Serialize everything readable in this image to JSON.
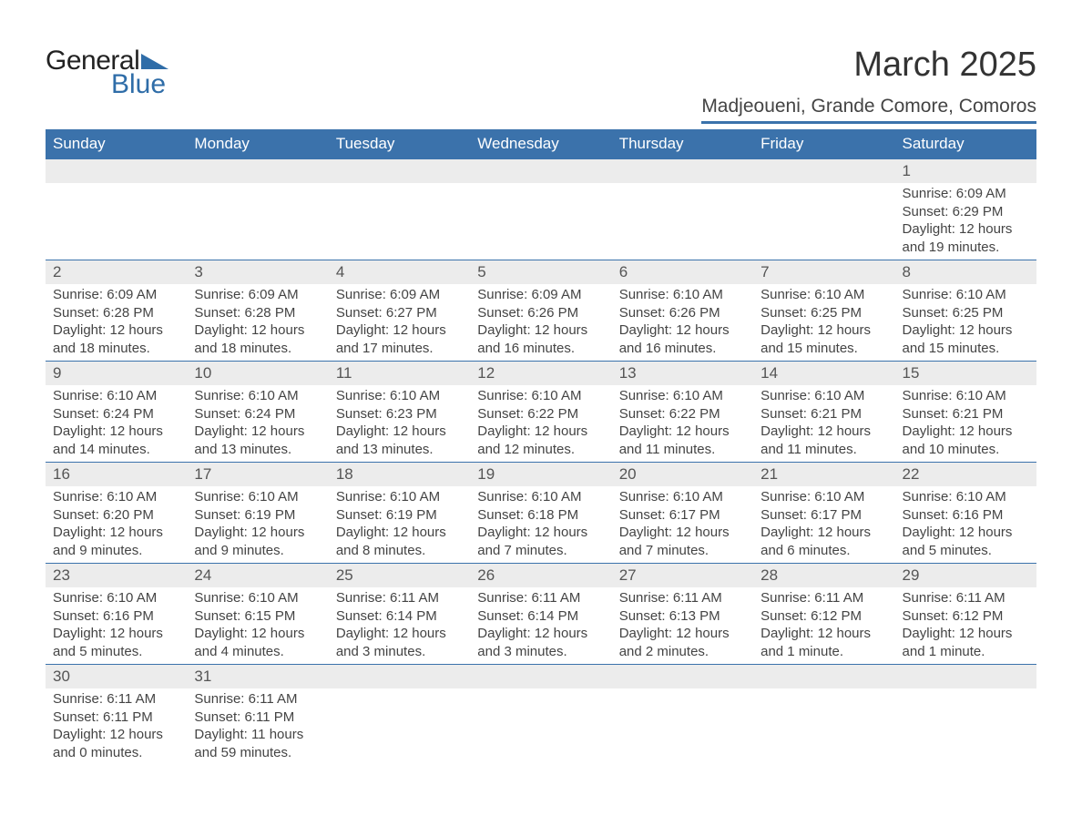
{
  "logo": {
    "word1": "General",
    "word2": "Blue",
    "brand_color": "#2f6da8"
  },
  "title": "March 2025",
  "location": "Madjeoueni, Grande Comore, Comoros",
  "header_bg": "#3b72ab",
  "header_fg": "#ffffff",
  "daynum_bg": "#ececec",
  "text_color": "#444444",
  "day_headers": [
    "Sunday",
    "Monday",
    "Tuesday",
    "Wednesday",
    "Thursday",
    "Friday",
    "Saturday"
  ],
  "weeks": [
    [
      {
        "n": "",
        "sunrise": "",
        "sunset": "",
        "daylight": ""
      },
      {
        "n": "",
        "sunrise": "",
        "sunset": "",
        "daylight": ""
      },
      {
        "n": "",
        "sunrise": "",
        "sunset": "",
        "daylight": ""
      },
      {
        "n": "",
        "sunrise": "",
        "sunset": "",
        "daylight": ""
      },
      {
        "n": "",
        "sunrise": "",
        "sunset": "",
        "daylight": ""
      },
      {
        "n": "",
        "sunrise": "",
        "sunset": "",
        "daylight": ""
      },
      {
        "n": "1",
        "sunrise": "Sunrise: 6:09 AM",
        "sunset": "Sunset: 6:29 PM",
        "daylight": "Daylight: 12 hours and 19 minutes."
      }
    ],
    [
      {
        "n": "2",
        "sunrise": "Sunrise: 6:09 AM",
        "sunset": "Sunset: 6:28 PM",
        "daylight": "Daylight: 12 hours and 18 minutes."
      },
      {
        "n": "3",
        "sunrise": "Sunrise: 6:09 AM",
        "sunset": "Sunset: 6:28 PM",
        "daylight": "Daylight: 12 hours and 18 minutes."
      },
      {
        "n": "4",
        "sunrise": "Sunrise: 6:09 AM",
        "sunset": "Sunset: 6:27 PM",
        "daylight": "Daylight: 12 hours and 17 minutes."
      },
      {
        "n": "5",
        "sunrise": "Sunrise: 6:09 AM",
        "sunset": "Sunset: 6:26 PM",
        "daylight": "Daylight: 12 hours and 16 minutes."
      },
      {
        "n": "6",
        "sunrise": "Sunrise: 6:10 AM",
        "sunset": "Sunset: 6:26 PM",
        "daylight": "Daylight: 12 hours and 16 minutes."
      },
      {
        "n": "7",
        "sunrise": "Sunrise: 6:10 AM",
        "sunset": "Sunset: 6:25 PM",
        "daylight": "Daylight: 12 hours and 15 minutes."
      },
      {
        "n": "8",
        "sunrise": "Sunrise: 6:10 AM",
        "sunset": "Sunset: 6:25 PM",
        "daylight": "Daylight: 12 hours and 15 minutes."
      }
    ],
    [
      {
        "n": "9",
        "sunrise": "Sunrise: 6:10 AM",
        "sunset": "Sunset: 6:24 PM",
        "daylight": "Daylight: 12 hours and 14 minutes."
      },
      {
        "n": "10",
        "sunrise": "Sunrise: 6:10 AM",
        "sunset": "Sunset: 6:24 PM",
        "daylight": "Daylight: 12 hours and 13 minutes."
      },
      {
        "n": "11",
        "sunrise": "Sunrise: 6:10 AM",
        "sunset": "Sunset: 6:23 PM",
        "daylight": "Daylight: 12 hours and 13 minutes."
      },
      {
        "n": "12",
        "sunrise": "Sunrise: 6:10 AM",
        "sunset": "Sunset: 6:22 PM",
        "daylight": "Daylight: 12 hours and 12 minutes."
      },
      {
        "n": "13",
        "sunrise": "Sunrise: 6:10 AM",
        "sunset": "Sunset: 6:22 PM",
        "daylight": "Daylight: 12 hours and 11 minutes."
      },
      {
        "n": "14",
        "sunrise": "Sunrise: 6:10 AM",
        "sunset": "Sunset: 6:21 PM",
        "daylight": "Daylight: 12 hours and 11 minutes."
      },
      {
        "n": "15",
        "sunrise": "Sunrise: 6:10 AM",
        "sunset": "Sunset: 6:21 PM",
        "daylight": "Daylight: 12 hours and 10 minutes."
      }
    ],
    [
      {
        "n": "16",
        "sunrise": "Sunrise: 6:10 AM",
        "sunset": "Sunset: 6:20 PM",
        "daylight": "Daylight: 12 hours and 9 minutes."
      },
      {
        "n": "17",
        "sunrise": "Sunrise: 6:10 AM",
        "sunset": "Sunset: 6:19 PM",
        "daylight": "Daylight: 12 hours and 9 minutes."
      },
      {
        "n": "18",
        "sunrise": "Sunrise: 6:10 AM",
        "sunset": "Sunset: 6:19 PM",
        "daylight": "Daylight: 12 hours and 8 minutes."
      },
      {
        "n": "19",
        "sunrise": "Sunrise: 6:10 AM",
        "sunset": "Sunset: 6:18 PM",
        "daylight": "Daylight: 12 hours and 7 minutes."
      },
      {
        "n": "20",
        "sunrise": "Sunrise: 6:10 AM",
        "sunset": "Sunset: 6:17 PM",
        "daylight": "Daylight: 12 hours and 7 minutes."
      },
      {
        "n": "21",
        "sunrise": "Sunrise: 6:10 AM",
        "sunset": "Sunset: 6:17 PM",
        "daylight": "Daylight: 12 hours and 6 minutes."
      },
      {
        "n": "22",
        "sunrise": "Sunrise: 6:10 AM",
        "sunset": "Sunset: 6:16 PM",
        "daylight": "Daylight: 12 hours and 5 minutes."
      }
    ],
    [
      {
        "n": "23",
        "sunrise": "Sunrise: 6:10 AM",
        "sunset": "Sunset: 6:16 PM",
        "daylight": "Daylight: 12 hours and 5 minutes."
      },
      {
        "n": "24",
        "sunrise": "Sunrise: 6:10 AM",
        "sunset": "Sunset: 6:15 PM",
        "daylight": "Daylight: 12 hours and 4 minutes."
      },
      {
        "n": "25",
        "sunrise": "Sunrise: 6:11 AM",
        "sunset": "Sunset: 6:14 PM",
        "daylight": "Daylight: 12 hours and 3 minutes."
      },
      {
        "n": "26",
        "sunrise": "Sunrise: 6:11 AM",
        "sunset": "Sunset: 6:14 PM",
        "daylight": "Daylight: 12 hours and 3 minutes."
      },
      {
        "n": "27",
        "sunrise": "Sunrise: 6:11 AM",
        "sunset": "Sunset: 6:13 PM",
        "daylight": "Daylight: 12 hours and 2 minutes."
      },
      {
        "n": "28",
        "sunrise": "Sunrise: 6:11 AM",
        "sunset": "Sunset: 6:12 PM",
        "daylight": "Daylight: 12 hours and 1 minute."
      },
      {
        "n": "29",
        "sunrise": "Sunrise: 6:11 AM",
        "sunset": "Sunset: 6:12 PM",
        "daylight": "Daylight: 12 hours and 1 minute."
      }
    ],
    [
      {
        "n": "30",
        "sunrise": "Sunrise: 6:11 AM",
        "sunset": "Sunset: 6:11 PM",
        "daylight": "Daylight: 12 hours and 0 minutes."
      },
      {
        "n": "31",
        "sunrise": "Sunrise: 6:11 AM",
        "sunset": "Sunset: 6:11 PM",
        "daylight": "Daylight: 11 hours and 59 minutes."
      },
      {
        "n": "",
        "sunrise": "",
        "sunset": "",
        "daylight": ""
      },
      {
        "n": "",
        "sunrise": "",
        "sunset": "",
        "daylight": ""
      },
      {
        "n": "",
        "sunrise": "",
        "sunset": "",
        "daylight": ""
      },
      {
        "n": "",
        "sunrise": "",
        "sunset": "",
        "daylight": ""
      },
      {
        "n": "",
        "sunrise": "",
        "sunset": "",
        "daylight": ""
      }
    ]
  ]
}
